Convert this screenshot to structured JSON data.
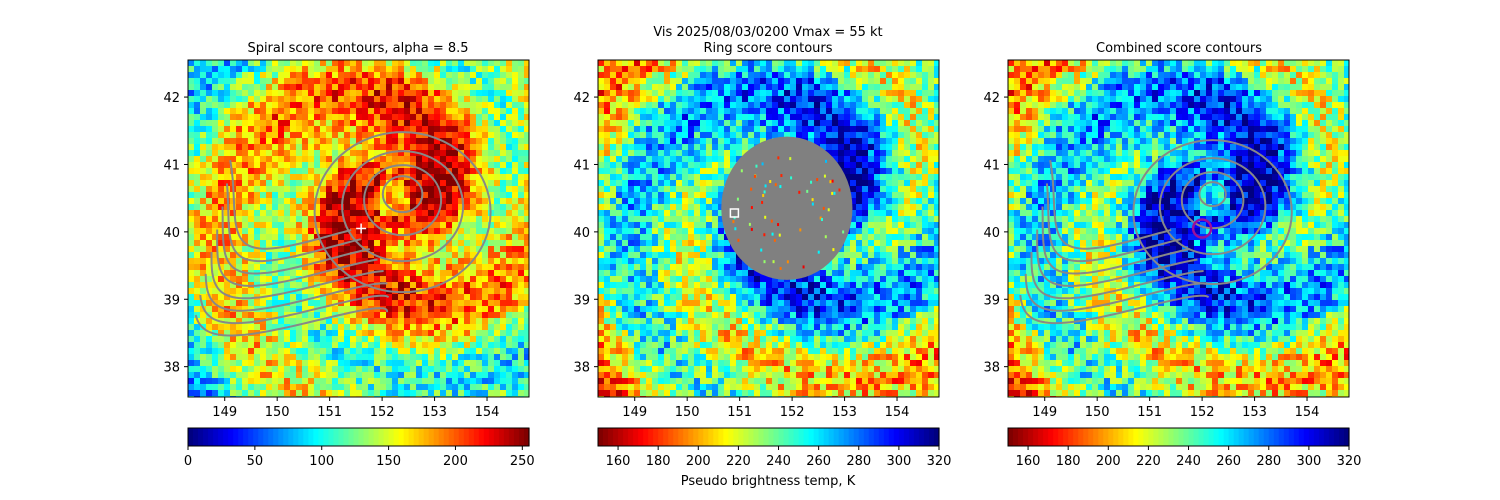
{
  "figure": {
    "suptitle_line1": "Vis  2025/08/03/0200    Vmax = 55 kt",
    "colors": {
      "contour": "#888888",
      "marker_white": "#ffffff",
      "ring_circle": "#9b109b",
      "gray_disk": "#808080"
    }
  },
  "chart_data": [
    {
      "type": "heatmap",
      "title": "Spiral score contours, alpha =  8.5",
      "xlabel": "",
      "ylabel": "",
      "xlim": [
        148.3,
        154.8
      ],
      "ylim": [
        37.55,
        42.55
      ],
      "xticks": [
        "149",
        "150",
        "151",
        "152",
        "153",
        "154"
      ],
      "yticks": [
        "38",
        "39",
        "40",
        "41",
        "42"
      ],
      "colorbar": {
        "label": "",
        "range": [
          0,
          255
        ],
        "ticks": [
          "0",
          "50",
          "100",
          "150",
          "200",
          "250"
        ],
        "colormap": "jet"
      },
      "storm_center": [
        152.2,
        40.5
      ],
      "marker": {
        "type": "plus",
        "lon": 151.6,
        "lat": 40.05
      },
      "contour_type": "spiral"
    },
    {
      "type": "heatmap",
      "title": "Ring score contours",
      "xlabel": "",
      "ylabel": "",
      "xlim": [
        148.3,
        154.8
      ],
      "ylim": [
        37.55,
        42.55
      ],
      "xticks": [
        "149",
        "150",
        "151",
        "152",
        "153",
        "154"
      ],
      "yticks": [
        "38",
        "39",
        "40",
        "41",
        "42"
      ],
      "colorbar": {
        "label": "Pseudo brightness temp, K",
        "range": [
          150,
          320
        ],
        "ticks": [
          "160",
          "180",
          "200",
          "220",
          "240",
          "260",
          "280",
          "300",
          "320"
        ],
        "colormap": "jet_r"
      },
      "storm_center": [
        152.2,
        40.5
      ],
      "masked_disk": {
        "lon": 151.9,
        "lat": 40.35,
        "radius_deg": 1.25
      },
      "marker": {
        "type": "square",
        "lon": 150.9,
        "lat": 40.28
      },
      "contour_type": "none"
    },
    {
      "type": "heatmap",
      "title": "Combined score contours",
      "xlabel": "",
      "ylabel": "",
      "xlim": [
        148.3,
        154.8
      ],
      "ylim": [
        37.55,
        42.55
      ],
      "xticks": [
        "149",
        "150",
        "151",
        "152",
        "153",
        "154"
      ],
      "yticks": [
        "38",
        "39",
        "40",
        "41",
        "42"
      ],
      "colorbar": {
        "label": "",
        "range": [
          150,
          320
        ],
        "ticks": [
          "160",
          "180",
          "200",
          "220",
          "240",
          "260",
          "280",
          "300",
          "320"
        ],
        "colormap": "jet_r"
      },
      "storm_center": [
        152.2,
        40.5
      ],
      "marker": {
        "type": "ring",
        "lon": 152.0,
        "lat": 40.05
      },
      "contour_type": "combined"
    }
  ]
}
